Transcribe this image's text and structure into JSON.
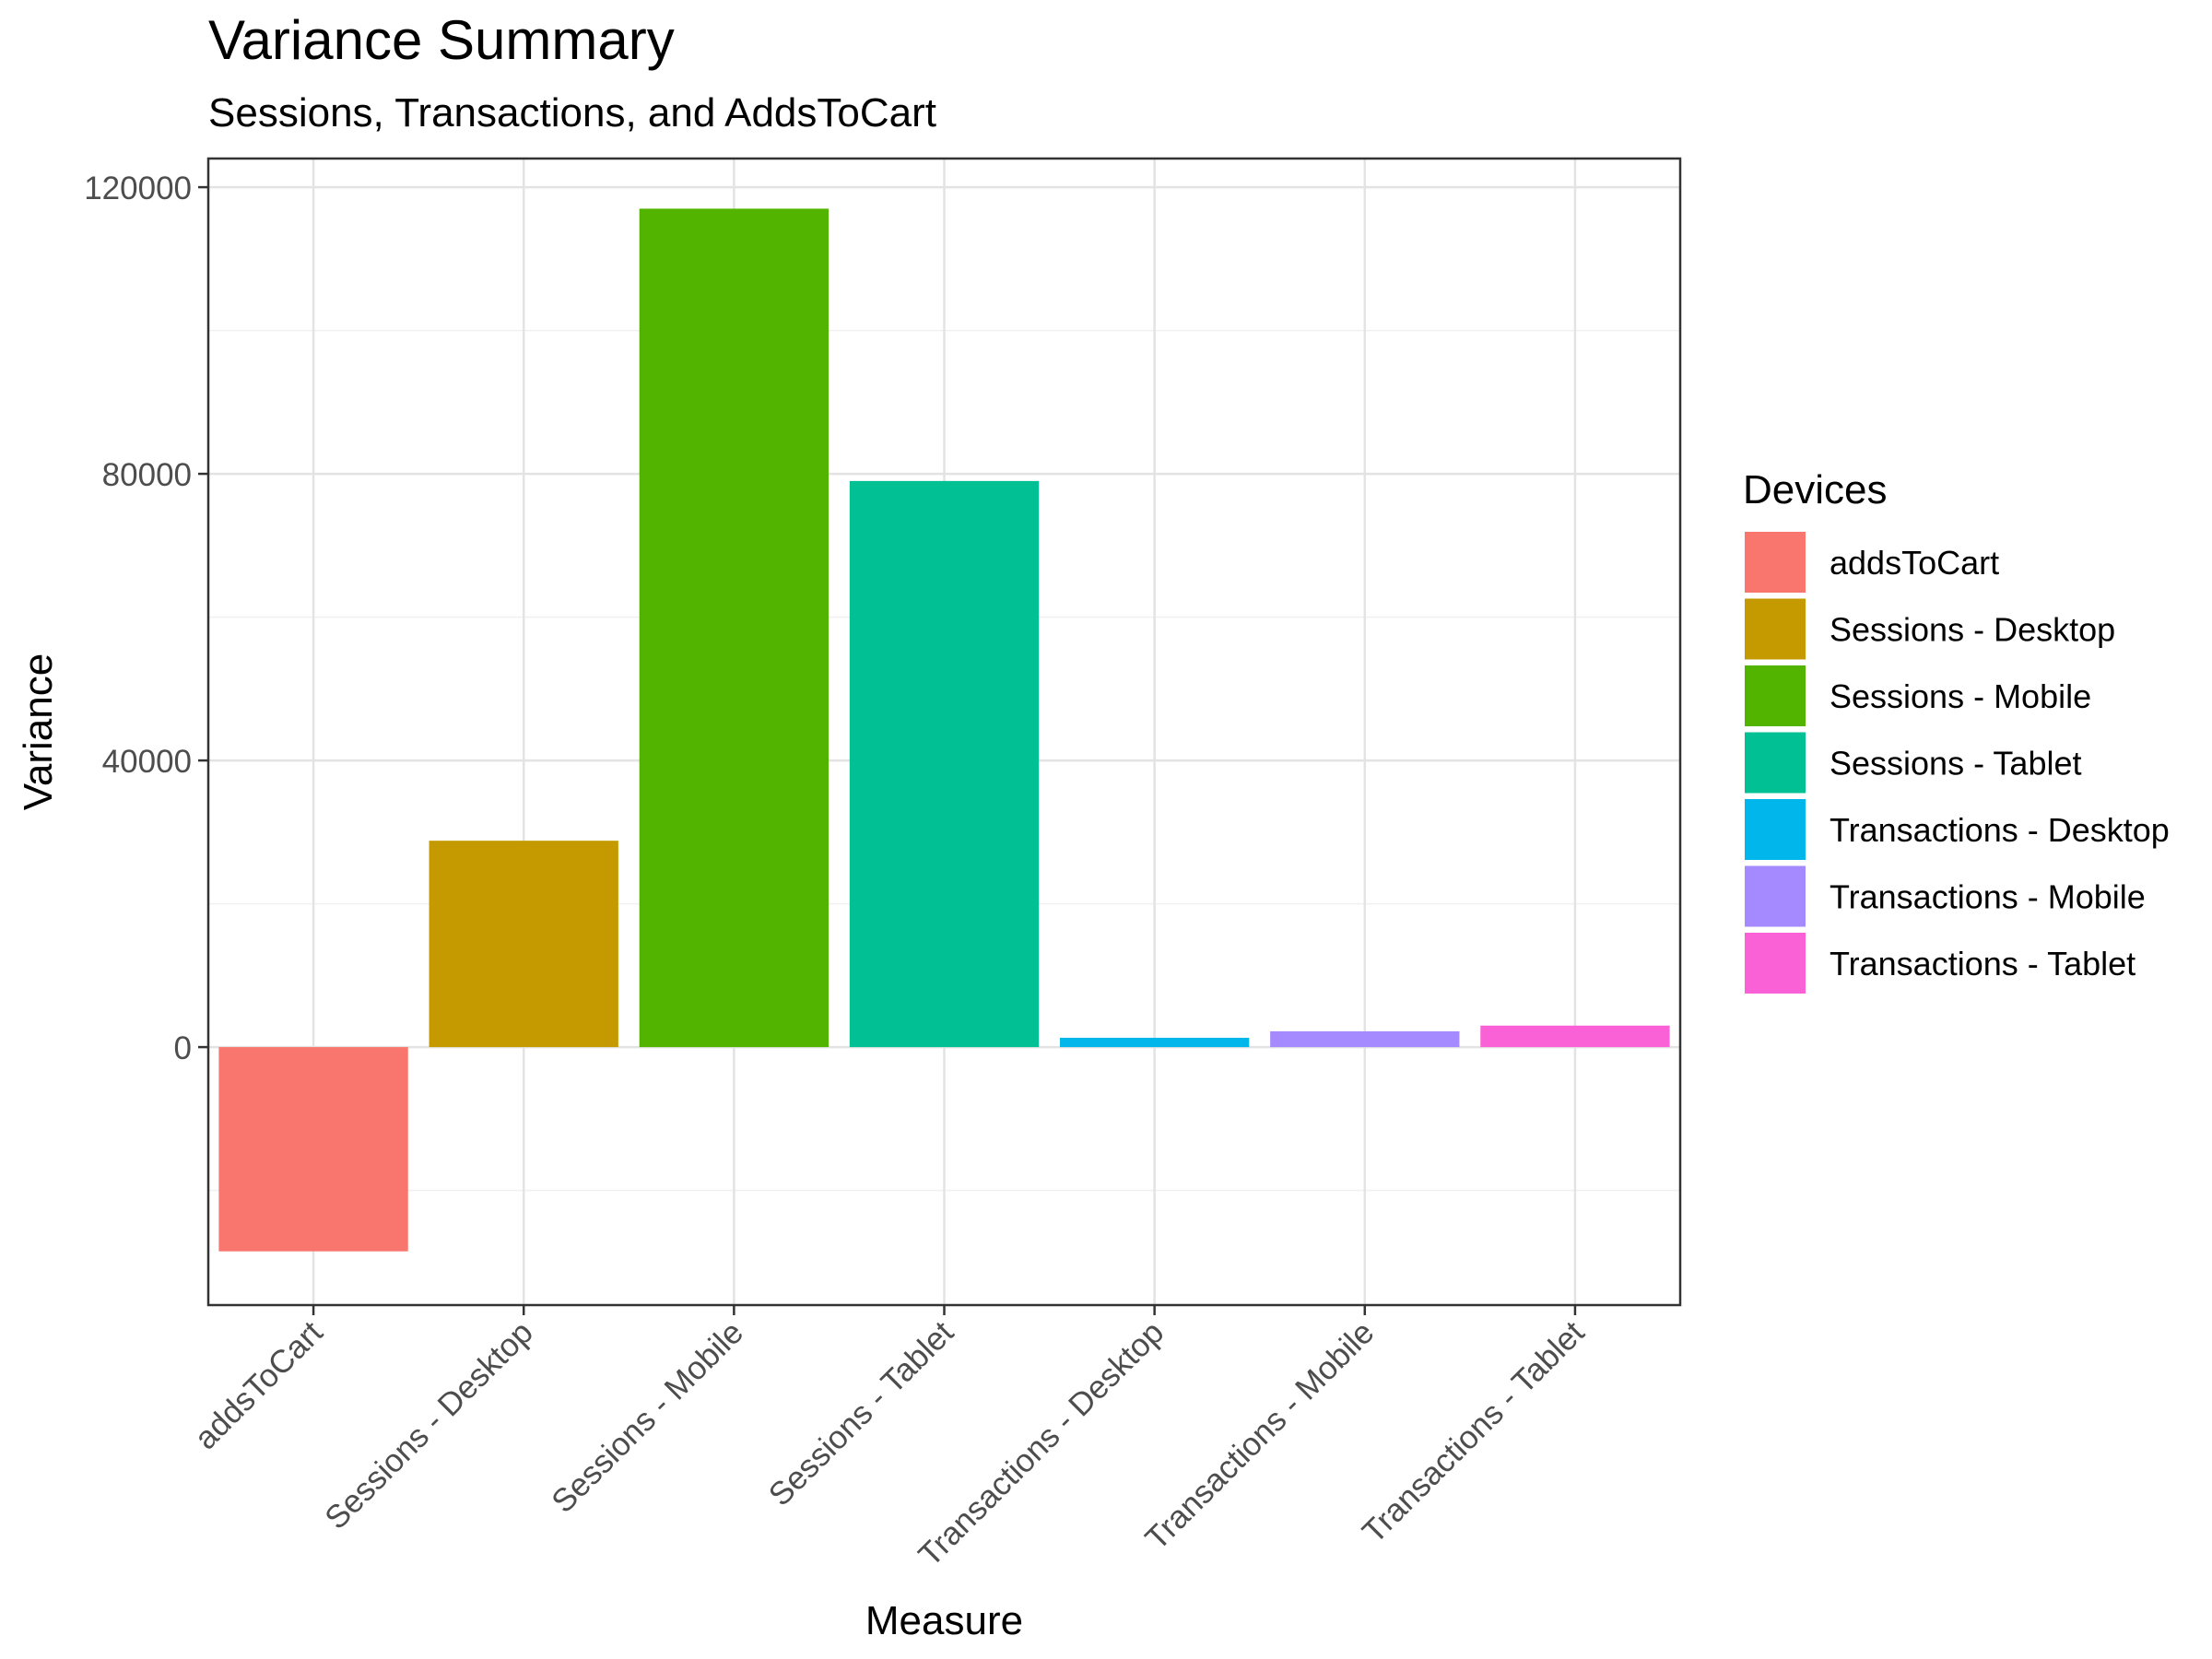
{
  "chart_data": {
    "type": "bar",
    "title": "Variance Summary",
    "subtitle": "Sessions, Transactions, and AddsToCart",
    "xlabel": "Measure",
    "ylabel": "Variance",
    "categories": [
      "addsToCart",
      "Sessions - Desktop",
      "Sessions - Mobile",
      "Sessions - Tablet",
      "Transactions - Desktop",
      "Transactions - Mobile",
      "Transactions - Tablet"
    ],
    "values": [
      -28500,
      28800,
      117000,
      79000,
      1300,
      2200,
      3000
    ],
    "colors": [
      "#F8766D",
      "#C49A00",
      "#53B400",
      "#00C094",
      "#00B6EB",
      "#A58AFF",
      "#FB61D7"
    ],
    "y_ticks": [
      0,
      40000,
      80000,
      120000
    ],
    "y_tick_labels": [
      "0",
      "40000",
      "80000",
      "120000"
    ],
    "ylim": [
      -36000,
      124000
    ],
    "grid": true,
    "legend": {
      "title": "Devices",
      "position": "right",
      "items": [
        "addsToCart",
        "Sessions - Desktop",
        "Sessions - Mobile",
        "Sessions - Tablet",
        "Transactions - Desktop",
        "Transactions - Mobile",
        "Transactions - Tablet"
      ]
    }
  }
}
